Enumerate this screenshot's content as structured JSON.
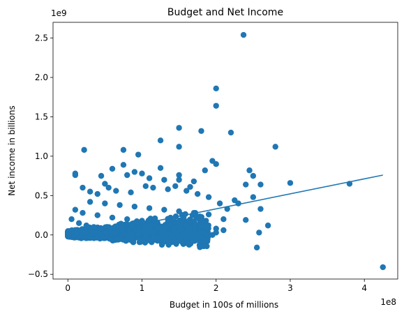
{
  "chart_data": {
    "type": "scatter",
    "title": "Budget and Net Income",
    "xlabel": "Budget in 100s of millions",
    "ylabel": "Net income in billions",
    "x_offset_label": "1e8",
    "y_offset_label": "1e9",
    "xlim": [
      -20000000,
      445000000
    ],
    "ylim": [
      -560000000,
      2700000000
    ],
    "x_ticks": [
      0,
      100000000,
      200000000,
      300000000,
      400000000
    ],
    "x_tick_labels": [
      "0",
      "1",
      "2",
      "3",
      "4"
    ],
    "y_ticks": [
      -500000000,
      0,
      500000000,
      1000000000,
      1500000000,
      2000000000,
      2500000000
    ],
    "y_tick_labels": [
      "−0.5",
      "0.0",
      "0.5",
      "1.0",
      "1.5",
      "2.0",
      "2.5"
    ],
    "grid": false,
    "marker_color": "#1f77b4",
    "series": [
      {
        "points": [
          [
            237000000,
            2540000000
          ],
          [
            200000000,
            1860000000
          ],
          [
            200000000,
            1640000000
          ],
          [
            150000000,
            1360000000
          ],
          [
            180000000,
            1320000000
          ],
          [
            220000000,
            1300000000
          ],
          [
            125000000,
            1200000000
          ],
          [
            150000000,
            1120000000
          ],
          [
            280000000,
            1120000000
          ],
          [
            22000000,
            1080000000
          ],
          [
            75000000,
            1080000000
          ],
          [
            95000000,
            1020000000
          ],
          [
            195000000,
            940000000
          ],
          [
            200000000,
            900000000
          ],
          [
            75000000,
            890000000
          ],
          [
            125000000,
            850000000
          ],
          [
            185000000,
            820000000
          ],
          [
            245000000,
            820000000
          ],
          [
            10000000,
            780000000
          ],
          [
            10000000,
            760000000
          ],
          [
            90000000,
            800000000
          ],
          [
            100000000,
            780000000
          ],
          [
            150000000,
            760000000
          ],
          [
            60000000,
            840000000
          ],
          [
            45000000,
            750000000
          ],
          [
            80000000,
            760000000
          ],
          [
            110000000,
            720000000
          ],
          [
            130000000,
            700000000
          ],
          [
            150000000,
            700000000
          ],
          [
            170000000,
            680000000
          ],
          [
            250000000,
            750000000
          ],
          [
            240000000,
            640000000
          ],
          [
            260000000,
            640000000
          ],
          [
            300000000,
            660000000
          ],
          [
            380000000,
            650000000
          ],
          [
            250000000,
            480000000
          ],
          [
            225000000,
            440000000
          ],
          [
            230000000,
            400000000
          ],
          [
            215000000,
            330000000
          ],
          [
            260000000,
            330000000
          ],
          [
            240000000,
            190000000
          ],
          [
            270000000,
            120000000
          ],
          [
            258000000,
            30000000
          ],
          [
            255000000,
            -160000000
          ],
          [
            425000000,
            -410000000
          ],
          [
            20000000,
            600000000
          ],
          [
            30000000,
            550000000
          ],
          [
            40000000,
            520000000
          ],
          [
            55000000,
            600000000
          ],
          [
            65000000,
            560000000
          ],
          [
            85000000,
            540000000
          ],
          [
            115000000,
            600000000
          ],
          [
            135000000,
            580000000
          ],
          [
            160000000,
            560000000
          ],
          [
            175000000,
            520000000
          ],
          [
            190000000,
            480000000
          ],
          [
            205000000,
            400000000
          ],
          [
            30000000,
            420000000
          ],
          [
            50000000,
            400000000
          ],
          [
            70000000,
            380000000
          ],
          [
            90000000,
            360000000
          ],
          [
            110000000,
            340000000
          ],
          [
            130000000,
            320000000
          ],
          [
            150000000,
            300000000
          ],
          [
            170000000,
            280000000
          ],
          [
            190000000,
            260000000
          ],
          [
            210000000,
            200000000
          ],
          [
            10000000,
            320000000
          ],
          [
            20000000,
            280000000
          ],
          [
            40000000,
            250000000
          ],
          [
            60000000,
            220000000
          ],
          [
            80000000,
            200000000
          ],
          [
            100000000,
            180000000
          ],
          [
            120000000,
            160000000
          ],
          [
            140000000,
            150000000
          ],
          [
            160000000,
            120000000
          ],
          [
            180000000,
            100000000
          ],
          [
            200000000,
            80000000
          ],
          [
            5000000,
            200000000
          ],
          [
            15000000,
            150000000
          ],
          [
            25000000,
            120000000
          ],
          [
            35000000,
            100000000
          ],
          [
            45000000,
            80000000
          ],
          [
            55000000,
            60000000
          ],
          [
            65000000,
            40000000
          ],
          [
            75000000,
            20000000
          ],
          [
            85000000,
            10000000
          ],
          [
            95000000,
            0
          ],
          [
            105000000,
            -20000000
          ],
          [
            115000000,
            -30000000
          ],
          [
            125000000,
            -50000000
          ],
          [
            135000000,
            -60000000
          ],
          [
            145000000,
            -80000000
          ],
          [
            155000000,
            -100000000
          ],
          [
            3000000,
            50000000
          ],
          [
            8000000,
            20000000
          ],
          [
            12000000,
            0
          ],
          [
            18000000,
            -10000000
          ],
          [
            28000000,
            -20000000
          ],
          [
            38000000,
            -30000000
          ],
          [
            48000000,
            -40000000
          ],
          [
            58000000,
            -50000000
          ],
          [
            68000000,
            -60000000
          ],
          [
            78000000,
            -70000000
          ],
          [
            88000000,
            -80000000
          ],
          [
            98000000,
            -90000000
          ],
          [
            200000000,
            30000000
          ],
          [
            195000000,
            0
          ],
          [
            210000000,
            60000000
          ],
          [
            185000000,
            20000000
          ],
          [
            50000000,
            650000000
          ],
          [
            105000000,
            620000000
          ],
          [
            145000000,
            620000000
          ],
          [
            165000000,
            610000000
          ]
        ]
      }
    ],
    "trendline": {
      "x": [
        0,
        425000000
      ],
      "y": [
        -50000000,
        760000000
      ]
    }
  }
}
